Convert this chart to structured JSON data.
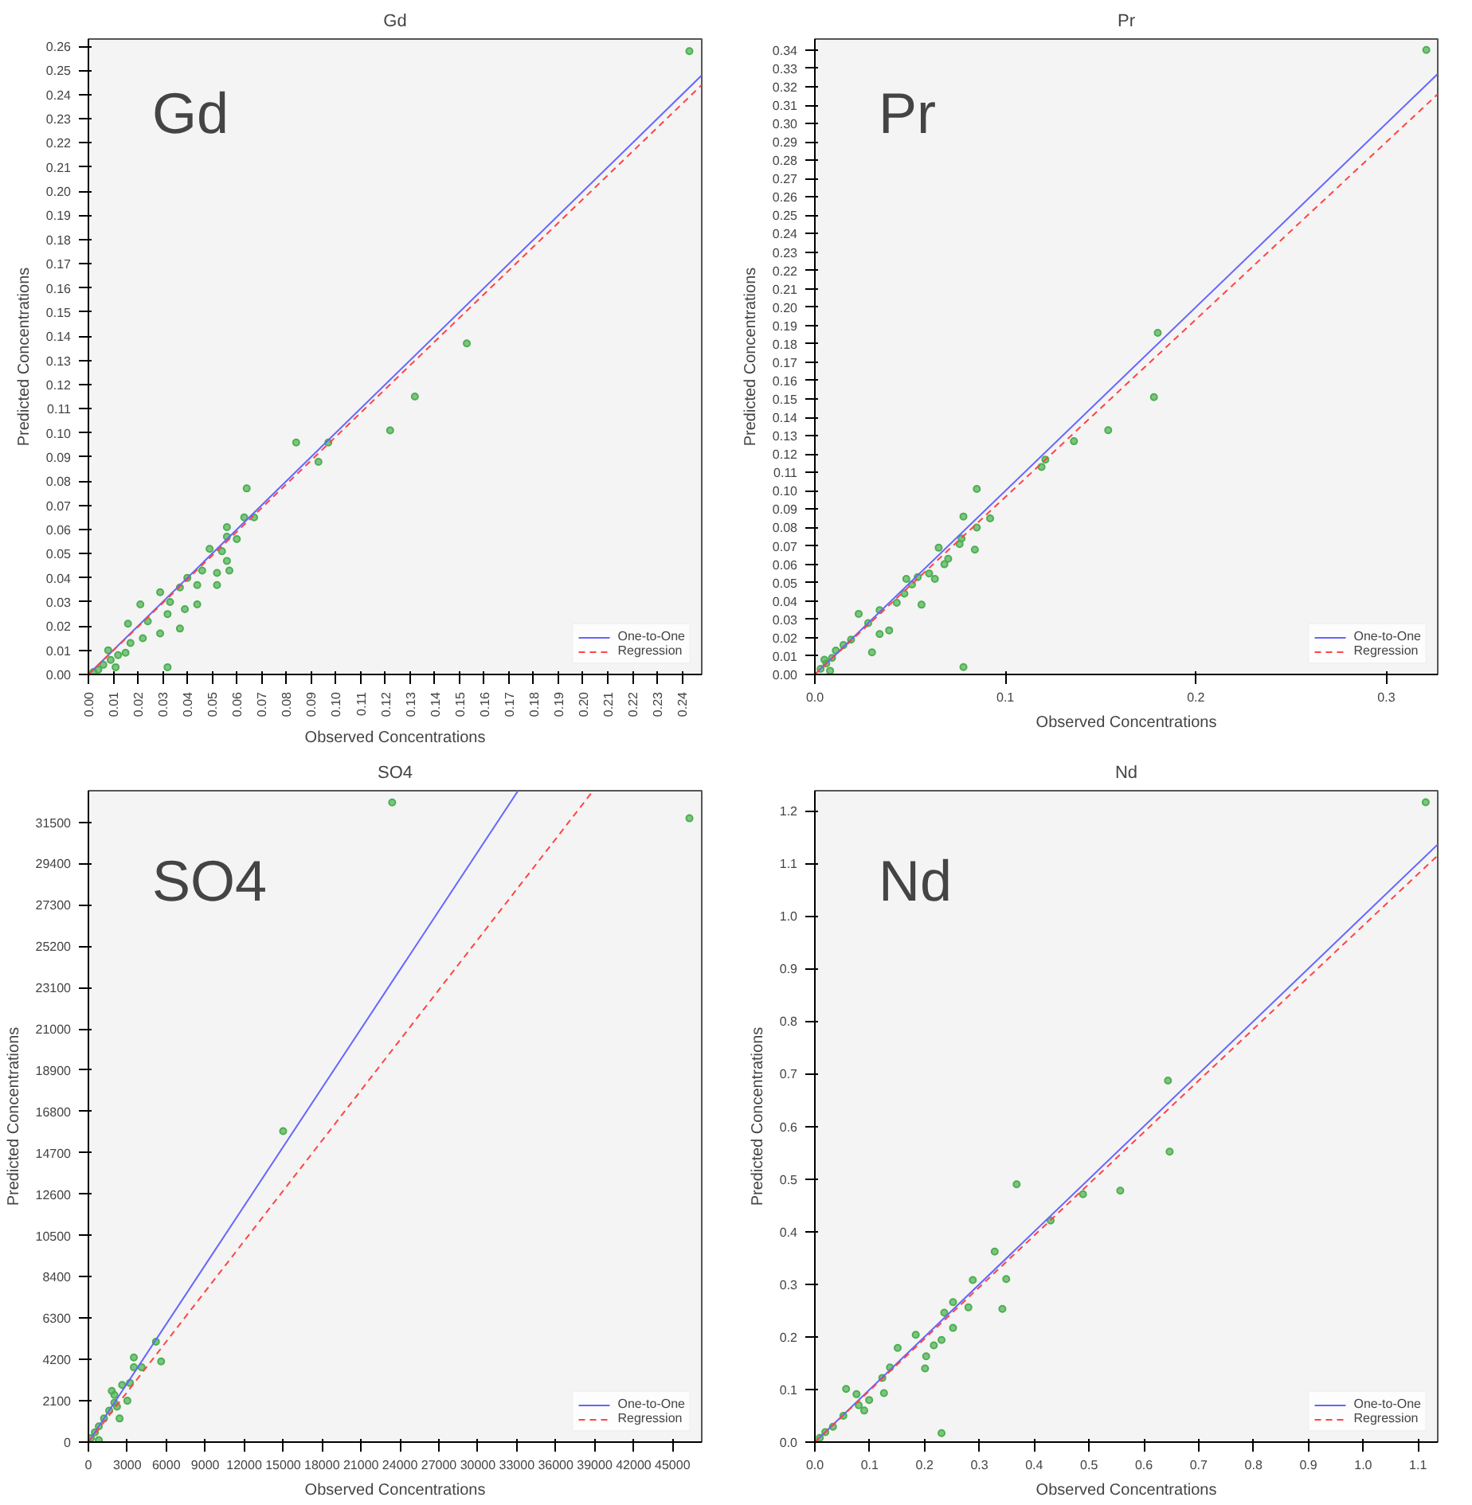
{
  "chart_data": [
    {
      "type": "scatter",
      "title": "Gd",
      "xlabel": "Observed Concentrations",
      "ylabel": "Predicted Concentrations",
      "annotations": [
        "Gd"
      ],
      "grid": false,
      "legend": "bottom right",
      "xlim": [
        0,
        0.248
      ],
      "ylim": [
        0,
        0.263
      ],
      "xticks": [
        {
          "value": 0,
          "label": "0.00"
        },
        {
          "value": 0.01,
          "label": "0.01"
        },
        {
          "value": 0.02,
          "label": "0.02"
        },
        {
          "value": 0.03,
          "label": "0.03"
        },
        {
          "value": 0.04,
          "label": "0.04"
        },
        {
          "value": 0.05,
          "label": "0.05"
        },
        {
          "value": 0.06,
          "label": "0.06"
        },
        {
          "value": 0.07,
          "label": "0.07"
        },
        {
          "value": 0.08,
          "label": "0.08"
        },
        {
          "value": 0.09,
          "label": "0.09"
        },
        {
          "value": 0.1,
          "label": "0.10"
        },
        {
          "value": 0.11,
          "label": "0.11"
        },
        {
          "value": 0.12,
          "label": "0.12"
        },
        {
          "value": 0.13,
          "label": "0.13"
        },
        {
          "value": 0.14,
          "label": "0.14"
        },
        {
          "value": 0.15,
          "label": "0.15"
        },
        {
          "value": 0.16,
          "label": "0.16"
        },
        {
          "value": 0.17,
          "label": "0.17"
        },
        {
          "value": 0.18,
          "label": "0.18"
        },
        {
          "value": 0.19,
          "label": "0.19"
        },
        {
          "value": 0.2,
          "label": "0.20"
        },
        {
          "value": 0.21,
          "label": "0.21"
        },
        {
          "value": 0.22,
          "label": "0.22"
        },
        {
          "value": 0.23,
          "label": "0.23"
        },
        {
          "value": 0.24,
          "label": "0.24"
        }
      ],
      "yticks": [
        {
          "value": 0,
          "label": "0.00"
        },
        {
          "value": 0.01,
          "label": "0.01"
        },
        {
          "value": 0.02,
          "label": "0.02"
        },
        {
          "value": 0.03,
          "label": "0.03"
        },
        {
          "value": 0.04,
          "label": "0.04"
        },
        {
          "value": 0.05,
          "label": "0.05"
        },
        {
          "value": 0.06,
          "label": "0.06"
        },
        {
          "value": 0.07,
          "label": "0.07"
        },
        {
          "value": 0.08,
          "label": "0.08"
        },
        {
          "value": 0.09,
          "label": "0.09"
        },
        {
          "value": 0.1,
          "label": "0.10"
        },
        {
          "value": 0.11,
          "label": "0.11"
        },
        {
          "value": 0.12,
          "label": "0.12"
        },
        {
          "value": 0.13,
          "label": "0.13"
        },
        {
          "value": 0.14,
          "label": "0.14"
        },
        {
          "value": 0.15,
          "label": "0.15"
        },
        {
          "value": 0.16,
          "label": "0.16"
        },
        {
          "value": 0.17,
          "label": "0.17"
        },
        {
          "value": 0.18,
          "label": "0.18"
        },
        {
          "value": 0.19,
          "label": "0.19"
        },
        {
          "value": 0.2,
          "label": "0.20"
        },
        {
          "value": 0.21,
          "label": "0.21"
        },
        {
          "value": 0.22,
          "label": "0.22"
        },
        {
          "value": 0.23,
          "label": "0.23"
        },
        {
          "value": 0.24,
          "label": "0.24"
        },
        {
          "value": 0.25,
          "label": "0.25"
        },
        {
          "value": 0.26,
          "label": "0.26"
        }
      ],
      "series": [
        {
          "marker": "circle",
          "color": "#4caf50",
          "x": [
            0.243,
            0.153,
            0.132,
            0.122,
            0.097,
            0.093,
            0.084,
            0.064,
            0.063,
            0.067,
            0.06,
            0.056,
            0.056,
            0.054,
            0.056,
            0.049,
            0.057,
            0.052,
            0.052,
            0.046,
            0.044,
            0.04,
            0.037,
            0.044,
            0.039,
            0.037,
            0.033,
            0.032,
            0.029,
            0.021,
            0.024,
            0.029,
            0.016,
            0.022,
            0.017,
            0.015,
            0.012,
            0.009,
            0.006,
            0.004,
            0.032,
            0.011,
            0.002,
            0.008
          ],
          "values": [
            0.258,
            0.137,
            0.115,
            0.101,
            0.096,
            0.088,
            0.096,
            0.077,
            0.065,
            0.065,
            0.056,
            0.061,
            0.057,
            0.051,
            0.047,
            0.052,
            0.043,
            0.042,
            0.037,
            0.043,
            0.037,
            0.04,
            0.036,
            0.029,
            0.027,
            0.019,
            0.03,
            0.025,
            0.034,
            0.029,
            0.022,
            0.017,
            0.021,
            0.015,
            0.013,
            0.009,
            0.008,
            0.006,
            0.004,
            0.002,
            0.003,
            0.003,
            0.001,
            0.01
          ]
        },
        {
          "type": "line",
          "name": "One-to-One",
          "color": "#6666ff",
          "line_style": "solid",
          "x": [
            0,
            0.248
          ],
          "values": [
            0,
            0.248
          ]
        },
        {
          "type": "line",
          "name": "Regression",
          "color": "#ff4444",
          "line_style": "dashed",
          "x": [
            0,
            0.248
          ],
          "values": [
            0,
            0.244
          ]
        }
      ]
    },
    {
      "type": "scatter",
      "title": "Pr",
      "xlabel": "Observed Concentrations",
      "ylabel": "Predicted Concentrations",
      "annotations": [
        "Pr"
      ],
      "grid": false,
      "legend": "bottom right",
      "xlim": [
        0,
        0.327
      ],
      "ylim": [
        0,
        0.346
      ],
      "xticks": [
        {
          "value": 0,
          "label": "0.0"
        },
        {
          "value": 0.1,
          "label": "0.1"
        },
        {
          "value": 0.2,
          "label": "0.2"
        },
        {
          "value": 0.3,
          "label": "0.3"
        }
      ],
      "yticks": [
        {
          "value": 0,
          "label": "0.00"
        },
        {
          "value": 0.01,
          "label": "0.01"
        },
        {
          "value": 0.02,
          "label": "0.02"
        },
        {
          "value": 0.03,
          "label": "0.03"
        },
        {
          "value": 0.04,
          "label": "0.04"
        },
        {
          "value": 0.05,
          "label": "0.05"
        },
        {
          "value": 0.06,
          "label": "0.06"
        },
        {
          "value": 0.07,
          "label": "0.07"
        },
        {
          "value": 0.08,
          "label": "0.08"
        },
        {
          "value": 0.09,
          "label": "0.09"
        },
        {
          "value": 0.1,
          "label": "0.10"
        },
        {
          "value": 0.11,
          "label": "0.11"
        },
        {
          "value": 0.12,
          "label": "0.12"
        },
        {
          "value": 0.13,
          "label": "0.13"
        },
        {
          "value": 0.14,
          "label": "0.14"
        },
        {
          "value": 0.15,
          "label": "0.15"
        },
        {
          "value": 0.16,
          "label": "0.16"
        },
        {
          "value": 0.17,
          "label": "0.17"
        },
        {
          "value": 0.18,
          "label": "0.18"
        },
        {
          "value": 0.19,
          "label": "0.19"
        },
        {
          "value": 0.2,
          "label": "0.20"
        },
        {
          "value": 0.21,
          "label": "0.21"
        },
        {
          "value": 0.22,
          "label": "0.22"
        },
        {
          "value": 0.23,
          "label": "0.23"
        },
        {
          "value": 0.24,
          "label": "0.24"
        },
        {
          "value": 0.25,
          "label": "0.25"
        },
        {
          "value": 0.26,
          "label": "0.26"
        },
        {
          "value": 0.27,
          "label": "0.27"
        },
        {
          "value": 0.28,
          "label": "0.28"
        },
        {
          "value": 0.29,
          "label": "0.29"
        },
        {
          "value": 0.3,
          "label": "0.30"
        },
        {
          "value": 0.31,
          "label": "0.31"
        },
        {
          "value": 0.32,
          "label": "0.32"
        },
        {
          "value": 0.33,
          "label": "0.33"
        },
        {
          "value": 0.34,
          "label": "0.34"
        }
      ],
      "series": [
        {
          "marker": "circle",
          "color": "#4caf50",
          "x": [
            0.321,
            0.18,
            0.178,
            0.154,
            0.136,
            0.121,
            0.119,
            0.085,
            0.078,
            0.092,
            0.085,
            0.084,
            0.077,
            0.076,
            0.07,
            0.065,
            0.068,
            0.063,
            0.06,
            0.056,
            0.054,
            0.048,
            0.051,
            0.047,
            0.043,
            0.039,
            0.034,
            0.034,
            0.028,
            0.03,
            0.023,
            0.019,
            0.015,
            0.011,
            0.009,
            0.006,
            0.003,
            0.078,
            0.008,
            0.005
          ],
          "values": [
            0.34,
            0.186,
            0.151,
            0.133,
            0.127,
            0.117,
            0.113,
            0.101,
            0.086,
            0.085,
            0.08,
            0.068,
            0.074,
            0.071,
            0.063,
            0.069,
            0.06,
            0.052,
            0.055,
            0.038,
            0.053,
            0.052,
            0.049,
            0.044,
            0.039,
            0.024,
            0.035,
            0.022,
            0.028,
            0.012,
            0.033,
            0.019,
            0.016,
            0.013,
            0.009,
            0.006,
            0.003,
            0.004,
            0.002,
            0.008
          ]
        },
        {
          "type": "line",
          "name": "One-to-One",
          "color": "#6666ff",
          "line_style": "solid",
          "x": [
            0,
            0.327
          ],
          "values": [
            0,
            0.327
          ]
        },
        {
          "type": "line",
          "name": "Regression",
          "color": "#ff4444",
          "line_style": "dashed",
          "x": [
            0,
            0.327
          ],
          "values": [
            0,
            0.316
          ]
        }
      ]
    },
    {
      "type": "scatter",
      "title": "SO4",
      "xlabel": "Observed Concentrations",
      "ylabel": "Predicted Concentrations",
      "annotations": [
        "SO4"
      ],
      "grid": false,
      "legend": "bottom right",
      "xlim": [
        0,
        47250
      ],
      "ylim": [
        0,
        33100
      ],
      "xticks": [
        0,
        3000,
        6000,
        9000,
        12000,
        15000,
        18000,
        21000,
        24000,
        27000,
        30000,
        33000,
        36000,
        39000,
        42000,
        45000
      ],
      "yticks": [
        0,
        2100,
        4200,
        6300,
        8400,
        10500,
        12600,
        14700,
        16800,
        18900,
        21000,
        23100,
        25200,
        27300,
        29400,
        31500
      ],
      "series": [
        {
          "marker": "circle",
          "color": "#4caf50",
          "x": [
            46300,
            23400,
            15000,
            5200,
            5600,
            4100,
            3500,
            3500,
            3200,
            2600,
            3000,
            2000,
            2000,
            1600,
            2400,
            1200,
            800,
            500,
            200,
            800,
            1800,
            2200
          ],
          "values": [
            31700,
            32500,
            15800,
            5100,
            4100,
            3800,
            4300,
            3800,
            3000,
            2900,
            2100,
            2400,
            2000,
            1600,
            1200,
            1200,
            800,
            500,
            200,
            100,
            2600,
            1800
          ]
        },
        {
          "type": "line",
          "name": "One-to-One",
          "color": "#6666ff",
          "line_style": "solid",
          "x": [
            0,
            33100
          ],
          "values": [
            0,
            33100
          ]
        },
        {
          "type": "line",
          "name": "Regression",
          "color": "#ff4444",
          "line_style": "dashed",
          "x": [
            0,
            38880
          ],
          "values": [
            0,
            33100
          ]
        }
      ]
    },
    {
      "type": "scatter",
      "title": "Nd",
      "xlabel": "Observed Concentrations",
      "ylabel": "Predicted Concentrations",
      "annotations": [
        "Nd"
      ],
      "grid": false,
      "legend": "bottom right",
      "xlim": [
        0,
        1.136
      ],
      "ylim": [
        0,
        1.238
      ],
      "xticks": [
        {
          "value": 0,
          "label": "0.0"
        },
        {
          "value": 0.1,
          "label": "0.1"
        },
        {
          "value": 0.2,
          "label": "0.2"
        },
        {
          "value": 0.3,
          "label": "0.3"
        },
        {
          "value": 0.4,
          "label": "0.4"
        },
        {
          "value": 0.5,
          "label": "0.5"
        },
        {
          "value": 0.6,
          "label": "0.6"
        },
        {
          "value": 0.7,
          "label": "0.7"
        },
        {
          "value": 0.8,
          "label": "0.8"
        },
        {
          "value": 0.9,
          "label": "0.9"
        },
        {
          "value": 1.0,
          "label": "1.0"
        },
        {
          "value": 1.1,
          "label": "1.1"
        }
      ],
      "yticks": [
        {
          "value": 0,
          "label": "0.0"
        },
        {
          "value": 0.1,
          "label": "0.1"
        },
        {
          "value": 0.2,
          "label": "0.2"
        },
        {
          "value": 0.3,
          "label": "0.3"
        },
        {
          "value": 0.4,
          "label": "0.4"
        },
        {
          "value": 0.5,
          "label": "0.5"
        },
        {
          "value": 0.6,
          "label": "0.6"
        },
        {
          "value": 0.7,
          "label": "0.7"
        },
        {
          "value": 0.8,
          "label": "0.8"
        },
        {
          "value": 0.9,
          "label": "0.9"
        },
        {
          "value": 1.0,
          "label": "1.0"
        },
        {
          "value": 1.1,
          "label": "1.1"
        },
        {
          "value": 1.2,
          "label": "1.2"
        }
      ],
      "series": [
        {
          "marker": "circle",
          "color": "#4caf50",
          "x": [
            1.114,
            0.644,
            0.647,
            0.557,
            0.489,
            0.43,
            0.368,
            0.328,
            0.349,
            0.342,
            0.288,
            0.28,
            0.252,
            0.252,
            0.236,
            0.231,
            0.217,
            0.184,
            0.201,
            0.203,
            0.151,
            0.137,
            0.123,
            0.126,
            0.057,
            0.099,
            0.08,
            0.052,
            0.033,
            0.019,
            0.009,
            0.231,
            0.09,
            0.076
          ],
          "values": [
            1.216,
            0.687,
            0.552,
            0.478,
            0.471,
            0.421,
            0.49,
            0.362,
            0.31,
            0.253,
            0.308,
            0.256,
            0.266,
            0.217,
            0.246,
            0.194,
            0.184,
            0.204,
            0.14,
            0.163,
            0.179,
            0.142,
            0.122,
            0.093,
            0.101,
            0.08,
            0.07,
            0.05,
            0.029,
            0.019,
            0.008,
            0.017,
            0.06,
            0.091
          ]
        },
        {
          "type": "line",
          "name": "One-to-One",
          "color": "#6666ff",
          "line_style": "solid",
          "x": [
            0,
            1.136
          ],
          "values": [
            0,
            1.136
          ]
        },
        {
          "type": "line",
          "name": "Regression",
          "color": "#ff4444",
          "line_style": "dashed",
          "x": [
            0,
            1.136
          ],
          "values": [
            0,
            1.115
          ]
        }
      ]
    }
  ]
}
